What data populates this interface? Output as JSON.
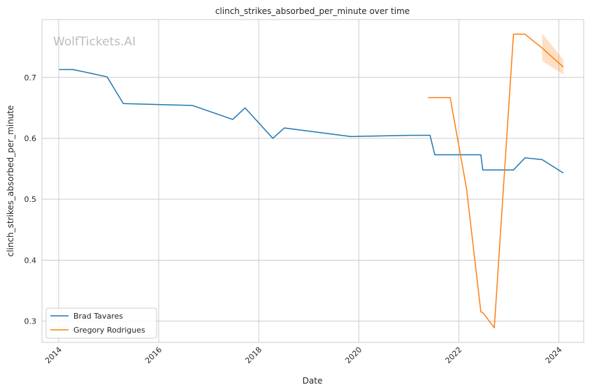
{
  "chart_data": {
    "type": "line",
    "title": "clinch_strikes_absorbed_per_minute over time",
    "xlabel": "Date",
    "ylabel": "clinch_strikes_absorbed_per_minute",
    "watermark": "WolfTickets.AI",
    "xlim": [
      "2013-09-01",
      "2024-07-01"
    ],
    "ylim": [
      0.265,
      0.795
    ],
    "x_ticks": [
      "2014",
      "2016",
      "2018",
      "2020",
      "2022",
      "2024"
    ],
    "y_ticks": [
      "0.3",
      "0.4",
      "0.5",
      "0.6",
      "0.7"
    ],
    "y_tick_values": [
      0.3,
      0.4,
      0.5,
      0.6,
      0.7
    ],
    "grid": true,
    "legend_position": "lower-left",
    "series": [
      {
        "name": "Brad Tavares",
        "color": "#1f77b4",
        "points": [
          [
            "2014-01-04",
            0.713
          ],
          [
            "2014-04-16",
            0.713
          ],
          [
            "2014-12-20",
            0.701
          ],
          [
            "2015-04-18",
            0.657
          ],
          [
            "2016-09-04",
            0.654
          ],
          [
            "2017-06-25",
            0.631
          ],
          [
            "2017-09-23",
            0.65
          ],
          [
            "2018-04-14",
            0.6
          ],
          [
            "2018-07-07",
            0.617
          ],
          [
            "2019-11-02",
            0.603
          ],
          [
            "2021-01-23",
            0.605
          ],
          [
            "2021-06-05",
            0.605
          ],
          [
            "2021-07-10",
            0.573
          ],
          [
            "2022-06-11",
            0.573
          ],
          [
            "2022-06-25",
            0.548
          ],
          [
            "2023-02-04",
            0.548
          ],
          [
            "2023-04-29",
            0.568
          ],
          [
            "2023-09-02",
            0.565
          ],
          [
            "2024-02-03",
            0.543
          ]
        ]
      },
      {
        "name": "Gregory Rodrigues",
        "color": "#ff7f0e",
        "band": [
          [
            "2023-09-02",
            0.727,
            0.772
          ],
          [
            "2024-02-03",
            0.705,
            0.729
          ]
        ],
        "points": [
          [
            "2021-05-22",
            0.667
          ],
          [
            "2021-10-30",
            0.667
          ],
          [
            "2022-02-26",
            0.518
          ],
          [
            "2022-06-11",
            0.315
          ],
          [
            "2022-06-25",
            0.314
          ],
          [
            "2022-09-17",
            0.289
          ],
          [
            "2023-02-04",
            0.771
          ],
          [
            "2023-04-29",
            0.771
          ],
          [
            "2023-09-02",
            0.748
          ],
          [
            "2024-02-03",
            0.717
          ]
        ]
      }
    ]
  }
}
